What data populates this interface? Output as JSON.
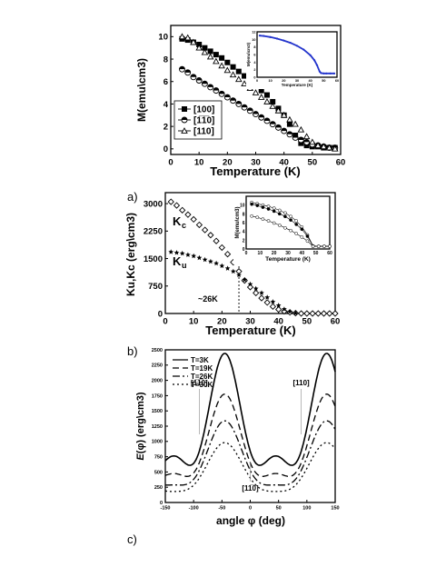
{
  "panels": [
    "a)",
    "b)",
    "c)"
  ],
  "chart_data": [
    {
      "id": "a",
      "type": "scatter",
      "xlabel": "Temperature (K)",
      "ylabel": "M(emu\\cm3)",
      "xlim": [
        0,
        60
      ],
      "ylim": [
        -0.5,
        11
      ],
      "xticks": [
        "0",
        "10",
        "20",
        "30",
        "40",
        "50",
        "60"
      ],
      "yticks": [
        "0",
        "2",
        "4",
        "6",
        "8",
        "10"
      ],
      "legend_position": "middle-left",
      "series": [
        {
          "name": "[100]",
          "marker": "square-filled",
          "x": [
            4,
            6,
            8,
            10,
            12,
            14,
            16,
            18,
            20,
            22,
            24,
            26,
            28,
            30,
            32,
            34,
            36,
            38,
            40,
            42,
            44,
            46,
            48,
            50,
            52,
            54,
            56,
            58
          ],
          "y": [
            9.8,
            9.7,
            9.5,
            9.3,
            9.0,
            8.7,
            8.4,
            8.1,
            7.7,
            7.3,
            6.9,
            6.5,
            6.1,
            5.7,
            5.2,
            4.8,
            4.2,
            3.6,
            3.0,
            2.2,
            1.2,
            0.5,
            0.3,
            0.2,
            0.2,
            0.1,
            0.1,
            0.1
          ]
        },
        {
          "name": "[1̅1̅0]",
          "marker": "circle-half",
          "x": [
            4,
            6,
            8,
            10,
            12,
            14,
            16,
            18,
            20,
            22,
            24,
            26,
            28,
            30,
            32,
            34,
            36,
            38,
            40,
            42,
            44,
            46,
            48,
            50,
            52,
            54,
            56,
            58
          ],
          "y": [
            7.1,
            6.8,
            6.4,
            6.1,
            5.8,
            5.5,
            5.2,
            4.9,
            4.6,
            4.3,
            4.0,
            3.7,
            3.4,
            3.1,
            2.8,
            2.5,
            2.2,
            1.9,
            1.6,
            1.3,
            1.0,
            0.8,
            0.6,
            0.4,
            0.3,
            0.2,
            0.1,
            0.1
          ]
        },
        {
          "name": "[110]",
          "marker": "triangle-open",
          "x": [
            4,
            6,
            8,
            10,
            12,
            14,
            16,
            18,
            20,
            22,
            24,
            26,
            28,
            30,
            32,
            34,
            36,
            38,
            40,
            42,
            44,
            46,
            48,
            50,
            52,
            54,
            56,
            58
          ],
          "y": [
            10.0,
            9.9,
            9.5,
            9.0,
            8.6,
            8.2,
            7.8,
            7.4,
            7.0,
            6.6,
            6.2,
            5.8,
            5.4,
            5.0,
            4.6,
            4.2,
            3.8,
            3.4,
            3.0,
            2.6,
            2.2,
            1.7,
            1.1,
            0.6,
            0.3,
            0.2,
            0.1,
            0.0
          ]
        }
      ],
      "inset": {
        "type": "line",
        "xlabel": "Temperature (K)",
        "ylabel": "M(emu\\cm3)",
        "xlim": [
          0,
          60
        ],
        "ylim": [
          0,
          12
        ],
        "xticks": [
          "0",
          "10",
          "20",
          "30",
          "40",
          "50",
          "60"
        ],
        "yticks": [
          "0",
          "2",
          "4",
          "6",
          "8",
          "10",
          "12"
        ],
        "color": "#2233cc",
        "x": [
          2,
          5,
          10,
          15,
          20,
          25,
          30,
          35,
          40,
          43,
          45,
          47,
          48,
          50,
          52,
          55,
          58
        ],
        "y": [
          11.0,
          10.9,
          10.6,
          10.2,
          9.7,
          9.1,
          8.3,
          7.3,
          5.8,
          4.5,
          3.2,
          1.5,
          1.1,
          1.0,
          1.0,
          1.0,
          1.0
        ]
      }
    },
    {
      "id": "b",
      "type": "scatter",
      "xlabel": "Temperature (K)",
      "ylabel": "Ku,Kc (erg\\cm3)",
      "xlim": [
        0,
        60
      ],
      "ylim": [
        0,
        3300
      ],
      "xticks": [
        "0",
        "10",
        "20",
        "30",
        "40",
        "50",
        "60"
      ],
      "yticks": [
        "0",
        "750",
        "1500",
        "2250",
        "3000"
      ],
      "annotations": {
        "kc": "Kc",
        "ku": "Ku",
        "tmark": "~26K"
      },
      "vline_x": 26,
      "series": [
        {
          "name": "Kc",
          "marker": "diamond-open",
          "x": [
            2,
            4,
            6,
            8,
            10,
            12,
            14,
            16,
            18,
            20,
            22,
            24,
            26,
            28,
            30,
            32,
            34,
            36,
            38,
            40,
            42,
            44,
            46,
            48,
            50,
            52,
            54,
            56,
            58,
            60
          ],
          "y": [
            3050,
            2950,
            2820,
            2700,
            2570,
            2420,
            2280,
            2140,
            1980,
            1800,
            1620,
            1400,
            1150,
            900,
            720,
            560,
            420,
            300,
            190,
            110,
            60,
            30,
            10,
            0,
            0,
            0,
            0,
            0,
            0,
            0
          ]
        },
        {
          "name": "Ku",
          "marker": "star-filled",
          "x": [
            2,
            4,
            6,
            8,
            10,
            12,
            14,
            16,
            18,
            20,
            22,
            24,
            26,
            28,
            30,
            32,
            34,
            36,
            38,
            40,
            42,
            44,
            46
          ],
          "y": [
            1680,
            1660,
            1640,
            1600,
            1570,
            1520,
            1470,
            1420,
            1370,
            1300,
            1230,
            1150,
            1050,
            920,
            800,
            680,
            560,
            440,
            320,
            220,
            120,
            50,
            10
          ]
        }
      ],
      "inset": {
        "type": "scatter",
        "xlabel": "Temperature (K)",
        "ylabel": "M(emu\\cm3)",
        "xlim": [
          0,
          60
        ],
        "ylim": [
          0,
          12
        ],
        "xticks": [
          "0",
          "10",
          "20",
          "30",
          "40",
          "50",
          "60"
        ],
        "yticks": [
          "0",
          "2",
          "4",
          "6",
          "8",
          "10"
        ],
        "series": [
          {
            "x": [
              4,
              8,
              12,
              16,
              20,
              24,
              28,
              32,
              36,
              40,
              44,
              48,
              52,
              56,
              60
            ],
            "y": [
              10.6,
              10.3,
              10.0,
              9.7,
              9.3,
              8.8,
              8.2,
              7.4,
              6.4,
              5.0,
              3.2,
              0.7,
              0.6,
              0.6,
              0.6
            ]
          },
          {
            "x": [
              4,
              8,
              12,
              16,
              20,
              24,
              28,
              32,
              36,
              40,
              44,
              48,
              52,
              56,
              60
            ],
            "y": [
              10.2,
              9.9,
              9.5,
              9.1,
              8.6,
              8.0,
              7.4,
              6.6,
              5.6,
              4.5,
              2.9,
              0.6,
              0.6,
              0.6,
              0.6
            ]
          },
          {
            "x": [
              4,
              8,
              12,
              16,
              20,
              24,
              28,
              32,
              36,
              40,
              44,
              48,
              52,
              56,
              60
            ],
            "y": [
              7.5,
              7.2,
              6.8,
              6.4,
              5.9,
              5.4,
              4.8,
              4.2,
              3.5,
              2.7,
              1.8,
              0.6,
              0.6,
              0.6,
              0.6
            ]
          }
        ]
      }
    },
    {
      "id": "c",
      "type": "line",
      "xlabel": "angle φ (deg)",
      "ylabel": "E(φ) (erg\\cm3)",
      "ylabel_italic": "E",
      "ylabel_rest": "(φ) (erg\\cm3)",
      "xlim": [
        -150,
        150
      ],
      "ylim": [
        0,
        2500
      ],
      "xticks": [
        "-150",
        "-100",
        "-50",
        "0",
        "50",
        "100",
        "150"
      ],
      "yticks": [
        "0",
        "250",
        "500",
        "750",
        "1000",
        "1250",
        "1500",
        "1750",
        "2000",
        "2250",
        "2500"
      ],
      "legend_position": "top-left",
      "annotations": {
        "left": "[1̅1̅0]",
        "right": "[110]",
        "center": "[11̅0]"
      },
      "series": [
        {
          "name": "T=3K",
          "dash": "",
          "Kc": 3050,
          "Ku": 1680
        },
        {
          "name": "T=19K",
          "dash": "7,4",
          "Kc": 1900,
          "Ku": 1300
        },
        {
          "name": "T=26K",
          "dash": "8,3,2,3",
          "Kc": 1150,
          "Ku": 1050
        },
        {
          "name": "T=30K",
          "dash": "2,3",
          "Kc": 720,
          "Ku": 800
        }
      ]
    }
  ]
}
